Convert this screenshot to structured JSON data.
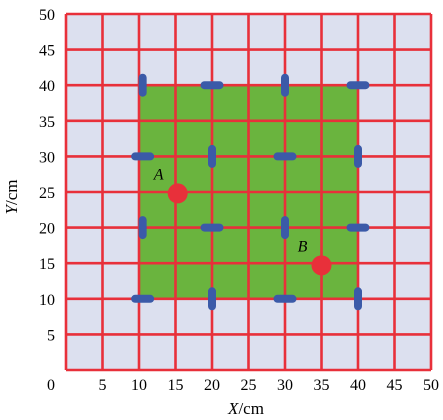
{
  "colors": {
    "background": "#dce0ef",
    "grid_line": "#e8303a",
    "green_region": "#6ab43e",
    "electrode": "#3b5aa8",
    "point": "#e8303a",
    "text": "#000000"
  },
  "diagram": {
    "x_axis": {
      "label_italic": "X",
      "label_unit": "/cm",
      "ticks": [
        "0",
        "5",
        "10",
        "15",
        "20",
        "25",
        "30",
        "35",
        "40",
        "45",
        "50"
      ]
    },
    "y_axis": {
      "label_italic": "Y",
      "label_unit": "/cm",
      "ticks": [
        "5",
        "10",
        "15",
        "20",
        "25",
        "30",
        "35",
        "40",
        "45",
        "50"
      ]
    },
    "region": {
      "x_min": 10,
      "x_max": 40,
      "y_min": 10,
      "y_max": 40
    },
    "points": [
      {
        "label": "A",
        "x": 15.3,
        "y": 24.8
      },
      {
        "label": "B",
        "x": 35,
        "y": 14.7
      }
    ],
    "electrodes": [
      {
        "x": 10.5,
        "y": 40,
        "orientation": "vertical"
      },
      {
        "x": 20,
        "y": 40,
        "orientation": "horizontal"
      },
      {
        "x": 30,
        "y": 40,
        "orientation": "vertical"
      },
      {
        "x": 40,
        "y": 40,
        "orientation": "horizontal"
      },
      {
        "x": 10.5,
        "y": 30,
        "orientation": "horizontal"
      },
      {
        "x": 20,
        "y": 30,
        "orientation": "vertical"
      },
      {
        "x": 30,
        "y": 30,
        "orientation": "horizontal"
      },
      {
        "x": 40,
        "y": 30,
        "orientation": "vertical"
      },
      {
        "x": 10.5,
        "y": 20,
        "orientation": "vertical"
      },
      {
        "x": 20,
        "y": 20,
        "orientation": "horizontal"
      },
      {
        "x": 30,
        "y": 20,
        "orientation": "vertical"
      },
      {
        "x": 40,
        "y": 20,
        "orientation": "horizontal"
      },
      {
        "x": 10.5,
        "y": 10,
        "orientation": "horizontal"
      },
      {
        "x": 20,
        "y": 10,
        "orientation": "vertical"
      },
      {
        "x": 30,
        "y": 10,
        "orientation": "horizontal"
      },
      {
        "x": 40,
        "y": 10,
        "orientation": "vertical"
      }
    ]
  }
}
